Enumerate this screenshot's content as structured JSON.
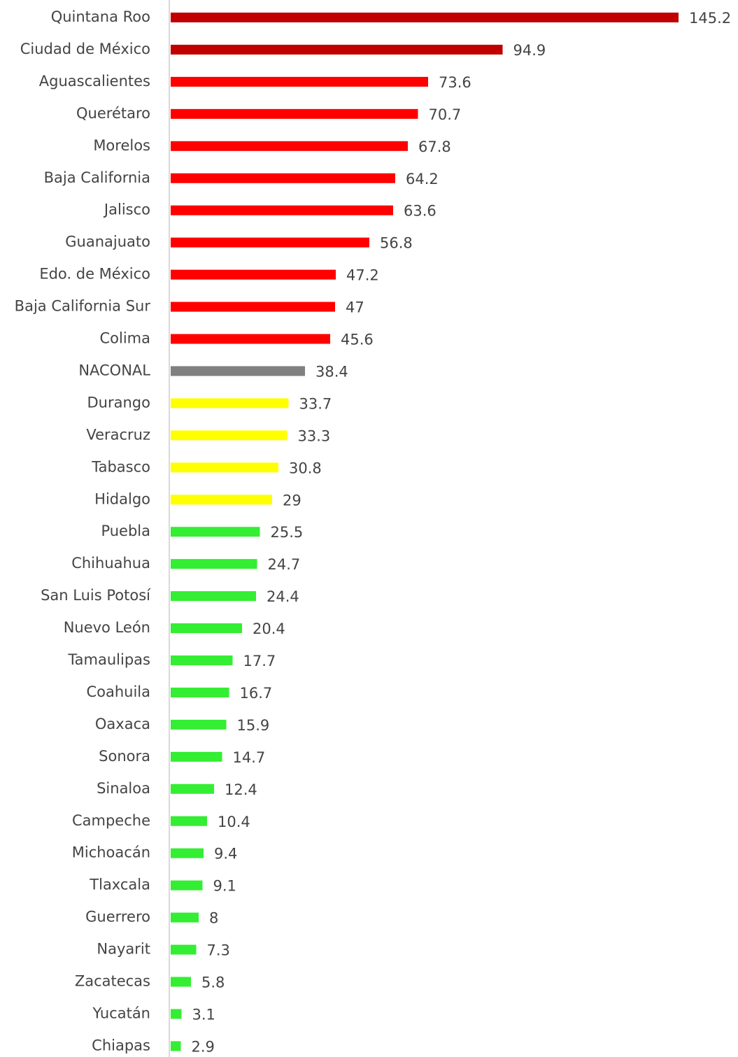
{
  "chart_data": {
    "type": "bar",
    "categories": [
      "Quintana Roo",
      "Ciudad de México",
      "Aguascalientes",
      "Querétaro",
      "Morelos",
      "Baja California",
      "Jalisco",
      "Guanajuato",
      "Edo. de México",
      "Baja California Sur",
      "Colima",
      "NACONAL",
      "Durango",
      "Veracruz",
      "Tabasco",
      "Hidalgo",
      "Puebla",
      "Chihuahua",
      "San Luis Potosí",
      "Nuevo León",
      "Tamaulipas",
      "Coahuila",
      "Oaxaca",
      "Sonora",
      "Sinaloa",
      "Campeche",
      "Michoacán",
      "Tlaxcala",
      "Guerrero",
      "Nayarit",
      "Zacatecas",
      "Yucatán",
      "Chiapas"
    ],
    "values": [
      145.2,
      94.9,
      73.6,
      70.7,
      67.8,
      64.2,
      63.6,
      56.8,
      47.2,
      47,
      45.6,
      38.4,
      33.7,
      33.3,
      30.8,
      29,
      25.5,
      24.7,
      24.4,
      20.4,
      17.7,
      16.7,
      15.9,
      14.7,
      12.4,
      10.4,
      9.4,
      9.1,
      8,
      7.3,
      5.8,
      3.1,
      2.9
    ],
    "colors": [
      "#c00000",
      "#c00000",
      "#ff0000",
      "#ff0000",
      "#ff0000",
      "#ff0000",
      "#ff0000",
      "#ff0000",
      "#ff0000",
      "#ff0000",
      "#ff0000",
      "#808080",
      "#ffff00",
      "#ffff00",
      "#ffff00",
      "#ffff00",
      "#33ee33",
      "#33ee33",
      "#33ee33",
      "#33ee33",
      "#33ee33",
      "#33ee33",
      "#33ee33",
      "#33ee33",
      "#33ee33",
      "#33ee33",
      "#33ee33",
      "#33ee33",
      "#33ee33",
      "#33ee33",
      "#33ee33",
      "#33ee33",
      "#33ee33"
    ]
  }
}
